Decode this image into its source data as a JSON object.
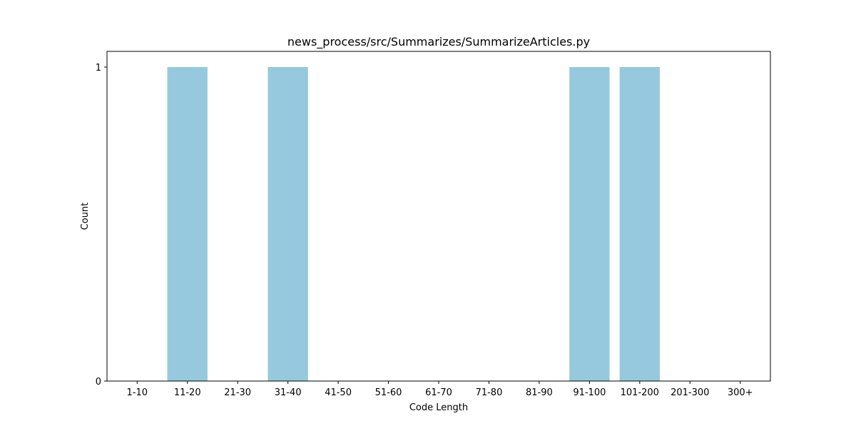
{
  "chart_data": {
    "type": "bar",
    "title": "news_process/src/Summarizes/SummarizeArticles.py",
    "xlabel": "Code Length",
    "ylabel": "Count",
    "categories": [
      "1-10",
      "11-20",
      "21-30",
      "31-40",
      "41-50",
      "51-60",
      "61-70",
      "71-80",
      "81-90",
      "91-100",
      "101-200",
      "201-300",
      "300+"
    ],
    "values": [
      0,
      1,
      0,
      1,
      0,
      0,
      0,
      0,
      0,
      1,
      1,
      0,
      0
    ],
    "yticks": [
      0,
      1
    ],
    "ylim": [
      0,
      1.05
    ],
    "grid": false,
    "legend": "none",
    "bar_color": "#96c9de"
  }
}
